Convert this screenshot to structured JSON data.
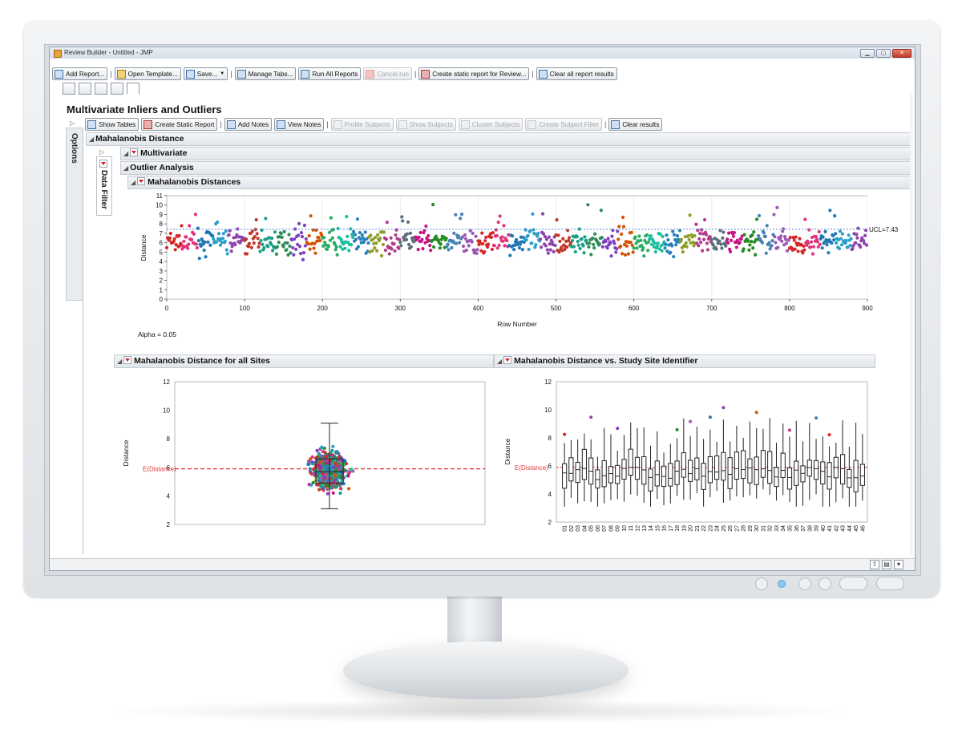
{
  "window": {
    "title": "Review Builder - Untitled - JMP",
    "minimize": "▁",
    "maximize": "▢",
    "close": "✕"
  },
  "toolbar": {
    "add_report": "Add Report...",
    "open_template": "Open Template...",
    "save": "Save...",
    "manage_tabs": "Manage Tabs...",
    "run_all": "Run All Reports",
    "cancel_run": "Cancel run",
    "create_static": "Create static report for Review...",
    "clear_all": "Clear all report results"
  },
  "report": {
    "title": "Multivariate Inliers and Outliers",
    "options_label": "Options",
    "data_filter_label": "Data Filter",
    "toolbar": {
      "show_tables": "Show Tables",
      "create_static_report": "Create Static Report",
      "add_notes": "Add Notes",
      "view_notes": "View Notes",
      "profile_subjects": "Profile Subjects",
      "show_subjects": "Show Subjects",
      "cluster_subjects": "Cluster Subjects",
      "create_subject_filter": "Create Subject Filter",
      "clear_results": "Clear results"
    },
    "outline": {
      "mahalanobis_distance": "Mahalanobis Distance",
      "multivariate": "Multivariate",
      "outlier_analysis": "Outlier Analysis",
      "mahalanobis_distances": "Mahalanobis Distances",
      "all_sites": "Mahalanobis Distance for all Sites",
      "vs_site": "Mahalanobis Distance vs. Study Site Identifier"
    },
    "alpha_text": "Alpha = 0.05"
  },
  "colors": {
    "ucl_line": "#5b8fd6",
    "expected_line": "#e03a3a",
    "box": "#222222"
  },
  "chart_data": [
    {
      "type": "scatter",
      "title": "Mahalanobis Distances",
      "xlabel": "Row Number",
      "ylabel": "Distance",
      "xlim": [
        0,
        900
      ],
      "ylim": [
        0,
        11
      ],
      "xticks": [
        0,
        100,
        200,
        300,
        400,
        500,
        600,
        700,
        800,
        900
      ],
      "yticks": [
        0,
        1,
        2,
        3,
        4,
        5,
        6,
        7,
        8,
        9,
        10,
        11
      ],
      "ucl": {
        "label": "UCL=7.43",
        "value": 7.43
      },
      "n_points": 900,
      "point_color_by": "Study Site Identifier"
    },
    {
      "type": "scatter",
      "title": "Mahalanobis Distance for all Sites",
      "ylabel": "Distance",
      "ylim": [
        2,
        12
      ],
      "yticks": [
        2,
        4,
        6,
        8,
        10,
        12
      ],
      "expected": {
        "label": "E(Distance)",
        "value": 5.9
      },
      "box": {
        "min": 3.1,
        "q1": 4.9,
        "median": 5.7,
        "q3": 6.6,
        "max": 9.1
      }
    },
    {
      "type": "box",
      "title": "Mahalanobis Distance vs. Study Site Identifier",
      "ylabel": "Distance",
      "ylim": [
        2,
        12
      ],
      "yticks": [
        2,
        4,
        6,
        8,
        10,
        12
      ],
      "expected": {
        "label": "E(Distance)",
        "value": 5.9
      },
      "categories": [
        "01",
        "02",
        "03",
        "04",
        "05",
        "06",
        "07",
        "08",
        "09",
        "10",
        "11",
        "12",
        "13",
        "14",
        "15",
        "16",
        "17",
        "18",
        "19",
        "20",
        "21",
        "22",
        "23",
        "24",
        "25",
        "26",
        "27",
        "28",
        "29",
        "30",
        "31",
        "32",
        "33",
        "34",
        "35",
        "36",
        "37",
        "38",
        "39",
        "40",
        "41",
        "42",
        "43",
        "44",
        "45",
        "46"
      ]
    }
  ]
}
